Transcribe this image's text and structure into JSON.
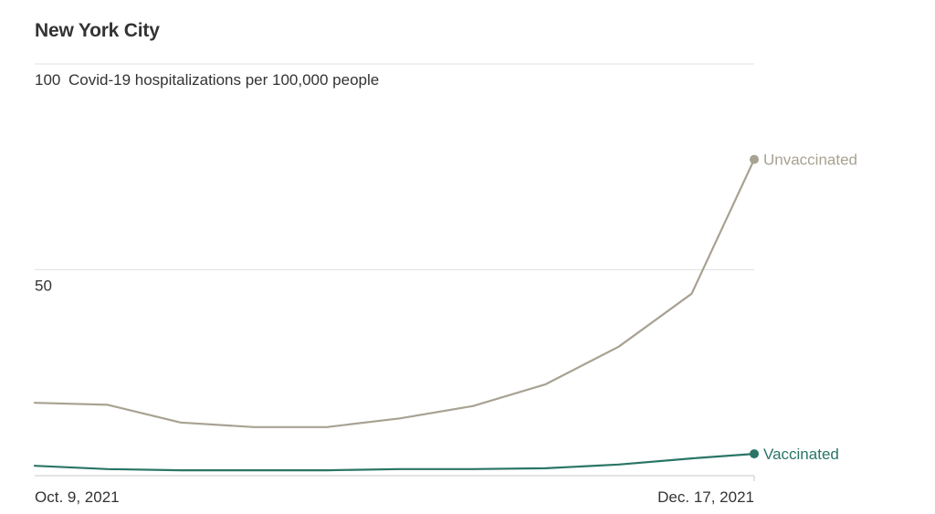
{
  "chart_data": {
    "type": "line",
    "title": "New York City",
    "ylabel": "",
    "ylim": [
      0,
      100
    ],
    "y_ticks": [
      {
        "value": 100,
        "label": "100"
      },
      {
        "value": 50,
        "label": "50"
      }
    ],
    "y_top_suffix": "Covid-19 hospitalizations per 100,000 people",
    "x_tick_labels": [
      "Oct. 9, 2021",
      "Dec. 17, 2021"
    ],
    "x": [
      "2021-10-09",
      "2021-10-16",
      "2021-10-23",
      "2021-10-30",
      "2021-11-06",
      "2021-11-13",
      "2021-11-20",
      "2021-11-27",
      "2021-12-04",
      "2021-12-11",
      "2021-12-17"
    ],
    "series": [
      {
        "name": "Unvaccinated",
        "color": "#a8a292",
        "values": [
          17.7,
          17.2,
          12.9,
          11.8,
          11.8,
          13.9,
          16.9,
          22.2,
          31.3,
          44.2,
          76.8
        ]
      },
      {
        "name": "Vaccinated",
        "color": "#2a7566",
        "values": [
          2.4,
          1.6,
          1.3,
          1.3,
          1.3,
          1.6,
          1.6,
          1.8,
          2.7,
          4.2,
          5.3
        ]
      }
    ],
    "grid": true,
    "legend": "inline-end-labels"
  }
}
